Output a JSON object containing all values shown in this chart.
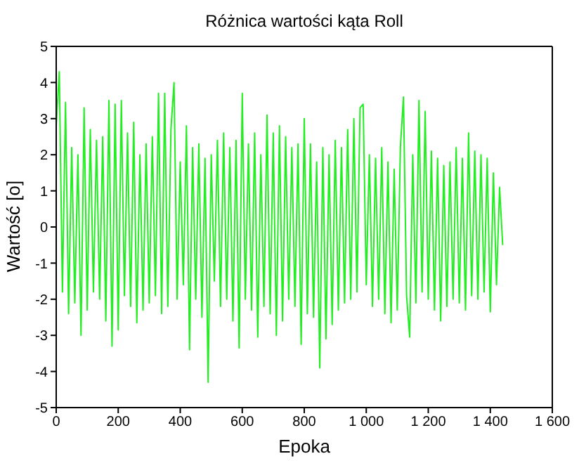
{
  "chart_data": {
    "type": "line",
    "title": "Różnica wartości kąta Roll",
    "xlabel": "Epoka",
    "ylabel": "Wartość [o]",
    "x": [
      0,
      10,
      20,
      30,
      40,
      50,
      60,
      70,
      80,
      90,
      100,
      110,
      120,
      130,
      140,
      150,
      160,
      170,
      180,
      190,
      200,
      210,
      220,
      230,
      240,
      250,
      260,
      270,
      280,
      290,
      300,
      310,
      320,
      330,
      340,
      350,
      360,
      370,
      380,
      390,
      400,
      410,
      420,
      430,
      440,
      450,
      460,
      470,
      480,
      490,
      500,
      510,
      520,
      530,
      540,
      550,
      560,
      570,
      580,
      590,
      600,
      610,
      620,
      630,
      640,
      650,
      660,
      670,
      680,
      690,
      700,
      710,
      720,
      730,
      740,
      750,
      760,
      770,
      780,
      790,
      800,
      810,
      820,
      830,
      840,
      850,
      860,
      870,
      880,
      890,
      900,
      910,
      920,
      930,
      940,
      950,
      960,
      970,
      980,
      990,
      1000,
      1010,
      1020,
      1030,
      1040,
      1050,
      1060,
      1070,
      1080,
      1090,
      1100,
      1110,
      1120,
      1130,
      1140,
      1150,
      1160,
      1170,
      1180,
      1190,
      1200,
      1210,
      1220,
      1230,
      1240,
      1250,
      1260,
      1270,
      1280,
      1290,
      1300,
      1310,
      1320,
      1330,
      1340,
      1350,
      1360,
      1370,
      1380,
      1390,
      1400,
      1410,
      1420,
      1430,
      1440
    ],
    "series": [
      {
        "color": "#22ee22",
        "values": [
          2.8,
          4.3,
          -1.8,
          3.45,
          -2.4,
          2.2,
          -2.1,
          2.0,
          -3.0,
          3.3,
          -2.3,
          2.7,
          -1.8,
          2.4,
          -2.0,
          2.5,
          -2.6,
          3.5,
          -3.3,
          3.4,
          -2.85,
          3.5,
          -1.9,
          2.6,
          -2.2,
          2.9,
          -2.65,
          2.0,
          -2.3,
          2.3,
          -2.1,
          2.5,
          -1.9,
          3.7,
          -2.4,
          3.7,
          -2.2,
          2.7,
          4.0,
          -2.0,
          1.8,
          -1.6,
          2.8,
          -3.4,
          2.2,
          -2.0,
          2.3,
          -2.5,
          1.9,
          -4.3,
          2.0,
          -1.5,
          2.4,
          -2.2,
          2.6,
          -2.0,
          2.2,
          -2.6,
          2.4,
          -3.35,
          3.7,
          -2.0,
          2.3,
          -2.3,
          2.6,
          -3.05,
          2.0,
          -2.2,
          3.1,
          -2.4,
          2.6,
          -3.0,
          2.8,
          -2.6,
          2.5,
          -2.0,
          2.2,
          -2.2,
          2.3,
          -3.25,
          3.0,
          -2.4,
          2.3,
          -2.5,
          1.8,
          -3.9,
          2.2,
          -3.1,
          2.0,
          -2.7,
          2.4,
          -2.3,
          2.2,
          -2.1,
          2.7,
          -2.0,
          3.0,
          -1.8,
          3.3,
          3.4,
          -1.6,
          2.0,
          -2.2,
          1.9,
          -2.0,
          2.2,
          -2.4,
          1.8,
          -2.65,
          1.6,
          -2.3,
          2.2,
          3.6,
          -1.9,
          -3.05,
          2.0,
          -2.1,
          3.5,
          -1.8,
          3.2,
          -2.0,
          2.1,
          -2.3,
          1.9,
          -2.6,
          1.7,
          -2.2,
          1.8,
          -2.0,
          2.2,
          -2.1,
          1.9,
          -2.3,
          2.6,
          -1.9,
          2.1,
          -2.0,
          2.0,
          -1.8,
          1.9,
          -2.35,
          1.5,
          -1.6,
          1.1,
          -0.5
        ]
      }
    ],
    "xlim": [
      0,
      1600
    ],
    "xticks": [
      0,
      200,
      400,
      600,
      800,
      {
        "value": 1000,
        "label": "1 000"
      },
      {
        "value": 1200,
        "label": "1 200"
      },
      {
        "value": 1400,
        "label": "1 400"
      },
      {
        "value": 1600,
        "label": "1 600"
      }
    ],
    "ylim": [
      -5,
      5
    ],
    "yticks": [
      -5,
      -4,
      -3,
      -2,
      -1,
      0,
      1,
      2,
      3,
      4,
      5
    ],
    "grid": false
  }
}
